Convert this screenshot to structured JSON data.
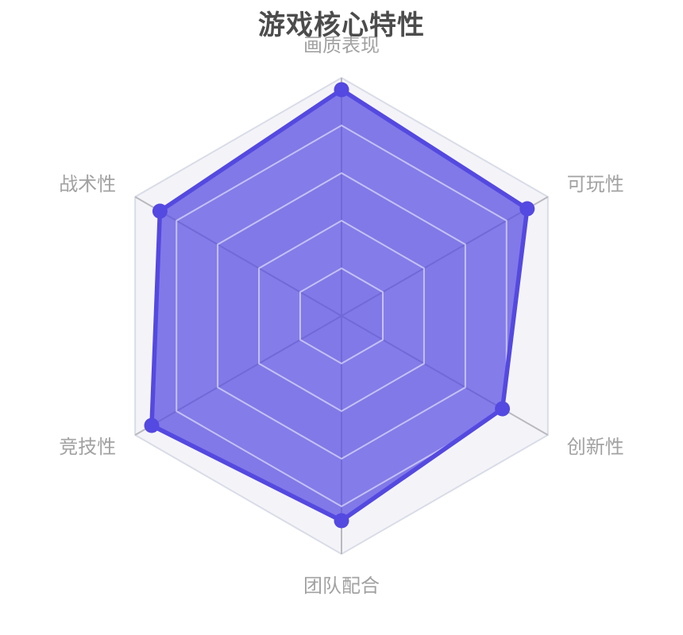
{
  "chart_data": {
    "type": "radar",
    "title": "游戏核心特性",
    "shape": "hexagon",
    "levels": 5,
    "axis_max": 100,
    "indicators": [
      "画质表现",
      "可玩性",
      "创新性",
      "团队配合",
      "竞技性",
      "战术性"
    ],
    "series": [
      {
        "values": [
          95,
          90,
          78,
          86,
          92,
          88
        ]
      }
    ],
    "legend_visible": false,
    "colors": {
      "series": "#5449e0",
      "area_fill": "rgba(84,73,224,0.72)",
      "ring_highlight": "rgba(255,255,255,0.55)",
      "split_area_odd": "#f4f4f8",
      "split_area_even": "#ffffff",
      "grid_ring": "#e2e4ee",
      "axis_ring": "#d9dce8",
      "spoke": "#b9b9bf",
      "label": "#a2a2a2",
      "title": "#4c4c4c"
    }
  }
}
